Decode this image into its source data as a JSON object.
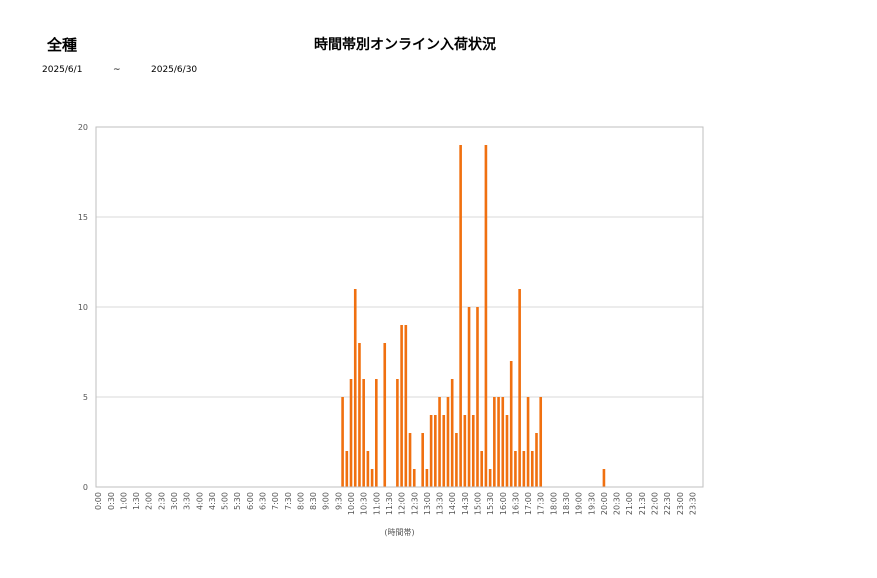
{
  "header": {
    "category": "全種",
    "title": "時間帯別オンライン入荷状況",
    "date_from": "2025/6/1",
    "date_sep": "~",
    "date_to": "2025/6/30"
  },
  "colors": {
    "bar": "#f07010",
    "grid": "#d9d9d9",
    "axis": "#bfbfbf"
  },
  "chart_data": {
    "type": "bar",
    "title": "時間帯別オンライン入荷状況",
    "xlabel": "(時間帯)",
    "ylabel": "",
    "ylim": [
      0,
      20
    ],
    "yticks": [
      0,
      5,
      10,
      15,
      20
    ],
    "grid": true,
    "x_tick_labels": [
      "0:00",
      "0:30",
      "1:00",
      "1:30",
      "2:00",
      "2:30",
      "3:00",
      "3:30",
      "4:00",
      "4:30",
      "5:00",
      "5:30",
      "6:00",
      "6:30",
      "7:00",
      "7:30",
      "8:00",
      "8:30",
      "9:00",
      "9:30",
      "10:00",
      "10:30",
      "11:00",
      "11:30",
      "12:00",
      "12:30",
      "13:00",
      "13:30",
      "14:00",
      "14:30",
      "15:00",
      "15:30",
      "16:00",
      "16:30",
      "17:00",
      "17:30",
      "18:00",
      "18:30",
      "19:00",
      "19:30",
      "20:00",
      "20:30",
      "21:00",
      "21:30",
      "22:00",
      "22:30",
      "23:00",
      "23:30"
    ],
    "categories": [
      "0:00",
      "0:10",
      "0:20",
      "0:30",
      "0:40",
      "0:50",
      "1:00",
      "1:10",
      "1:20",
      "1:30",
      "1:40",
      "1:50",
      "2:00",
      "2:10",
      "2:20",
      "2:30",
      "2:40",
      "2:50",
      "3:00",
      "3:10",
      "3:20",
      "3:30",
      "3:40",
      "3:50",
      "4:00",
      "4:10",
      "4:20",
      "4:30",
      "4:40",
      "4:50",
      "5:00",
      "5:10",
      "5:20",
      "5:30",
      "5:40",
      "5:50",
      "6:00",
      "6:10",
      "6:20",
      "6:30",
      "6:40",
      "6:50",
      "7:00",
      "7:10",
      "7:20",
      "7:30",
      "7:40",
      "7:50",
      "8:00",
      "8:10",
      "8:20",
      "8:30",
      "8:40",
      "8:50",
      "9:00",
      "9:10",
      "9:20",
      "9:30",
      "9:40",
      "9:50",
      "10:00",
      "10:10",
      "10:20",
      "10:30",
      "10:40",
      "10:50",
      "11:00",
      "11:10",
      "11:20",
      "11:30",
      "11:40",
      "11:50",
      "12:00",
      "12:10",
      "12:20",
      "12:30",
      "12:40",
      "12:50",
      "13:00",
      "13:10",
      "13:20",
      "13:30",
      "13:40",
      "13:50",
      "14:00",
      "14:10",
      "14:20",
      "14:30",
      "14:40",
      "14:50",
      "15:00",
      "15:10",
      "15:20",
      "15:30",
      "15:40",
      "15:50",
      "16:00",
      "16:10",
      "16:20",
      "16:30",
      "16:40",
      "16:50",
      "17:00",
      "17:10",
      "17:20",
      "17:30",
      "17:40",
      "17:50",
      "18:00",
      "18:10",
      "18:20",
      "18:30",
      "18:40",
      "18:50",
      "19:00",
      "19:10",
      "19:20",
      "19:30",
      "19:40",
      "19:50",
      "20:00",
      "20:10",
      "20:20",
      "20:30",
      "20:40",
      "20:50",
      "21:00",
      "21:10",
      "21:20",
      "21:30",
      "21:40",
      "21:50",
      "22:00",
      "22:10",
      "22:20",
      "22:30",
      "22:40",
      "22:50",
      "23:00",
      "23:10",
      "23:20",
      "23:30",
      "23:40",
      "23:50"
    ],
    "values": [
      0,
      0,
      0,
      0,
      0,
      0,
      0,
      0,
      0,
      0,
      0,
      0,
      0,
      0,
      0,
      0,
      0,
      0,
      0,
      0,
      0,
      0,
      0,
      0,
      0,
      0,
      0,
      0,
      0,
      0,
      0,
      0,
      0,
      0,
      0,
      0,
      0,
      0,
      0,
      0,
      0,
      0,
      0,
      0,
      0,
      0,
      0,
      0,
      0,
      0,
      0,
      0,
      0,
      0,
      0,
      0,
      0,
      0,
      5,
      2,
      6,
      11,
      8,
      6,
      2,
      1,
      6,
      0,
      8,
      0,
      0,
      6,
      9,
      9,
      3,
      1,
      0,
      3,
      1,
      4,
      4,
      5,
      4,
      5,
      6,
      3,
      19,
      4,
      10,
      4,
      10,
      2,
      19,
      1,
      5,
      5,
      5,
      4,
      7,
      2,
      11,
      2,
      5,
      2,
      3,
      5,
      0,
      0,
      0,
      0,
      0,
      0,
      0,
      0,
      0,
      0,
      0,
      0,
      0,
      0,
      1,
      0,
      0,
      0,
      0,
      0,
      0,
      0,
      0,
      0,
      0,
      0,
      0,
      0,
      0,
      0,
      0,
      0,
      0,
      0,
      0,
      0,
      0,
      0
    ]
  }
}
